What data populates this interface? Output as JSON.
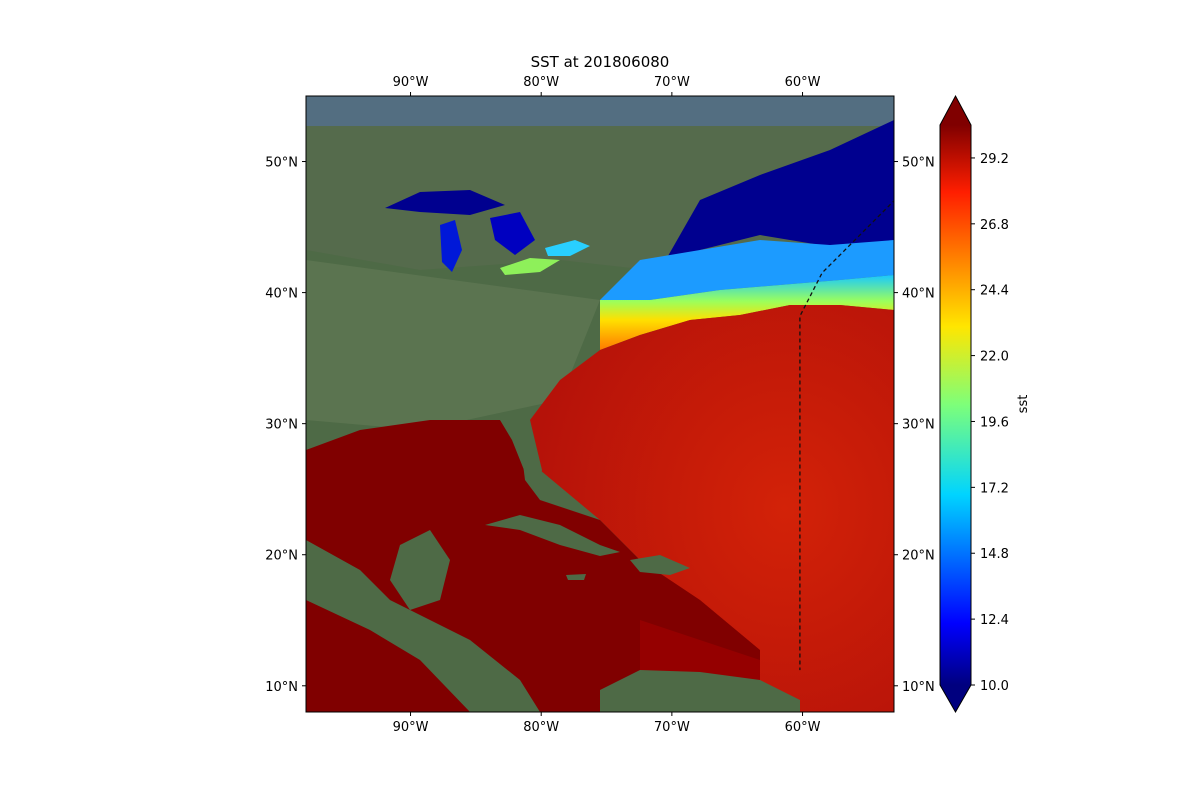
{
  "title": "SST at 201806080",
  "map": {
    "lon_range": [
      -98,
      -53
    ],
    "lat_range": [
      8,
      55
    ],
    "lon_ticks": [
      {
        "value": -90,
        "label": "90°W"
      },
      {
        "value": -80,
        "label": "80°W"
      },
      {
        "value": -70,
        "label": "70°W"
      },
      {
        "value": -60,
        "label": "60°W"
      }
    ],
    "lat_ticks": [
      {
        "value": 50,
        "label": "50°N"
      },
      {
        "value": 40,
        "label": "40°N"
      },
      {
        "value": 30,
        "label": "30°N"
      },
      {
        "value": 20,
        "label": "20°N"
      },
      {
        "value": 10,
        "label": "10°N"
      }
    ]
  },
  "colorbar": {
    "label": "sst",
    "min": 10.0,
    "max": 30.4,
    "extend": "both",
    "colormap": "jet",
    "ticks": [
      {
        "value": 10.0,
        "label": "10.0"
      },
      {
        "value": 12.4,
        "label": "12.4"
      },
      {
        "value": 14.8,
        "label": "14.8"
      },
      {
        "value": 17.2,
        "label": "17.2"
      },
      {
        "value": 19.6,
        "label": "19.6"
      },
      {
        "value": 22.0,
        "label": "22.0"
      },
      {
        "value": 24.4,
        "label": "24.4"
      },
      {
        "value": 26.8,
        "label": "26.8"
      },
      {
        "value": 29.2,
        "label": "29.2"
      }
    ]
  },
  "colors": {
    "land": "#4e6a46",
    "warm_sea": "#800000",
    "hot": "#d81a0a",
    "cold": "#00008f",
    "dashed_line": "#111111"
  },
  "dashed_track": [
    {
      "lon": -52.5,
      "lat": 47.5
    },
    {
      "lon": -55.5,
      "lat": 44.5
    },
    {
      "lon": -58.5,
      "lat": 41.5
    },
    {
      "lon": -60.2,
      "lat": 38.2
    },
    {
      "lon": -60.2,
      "lat": 11.2
    }
  ]
}
